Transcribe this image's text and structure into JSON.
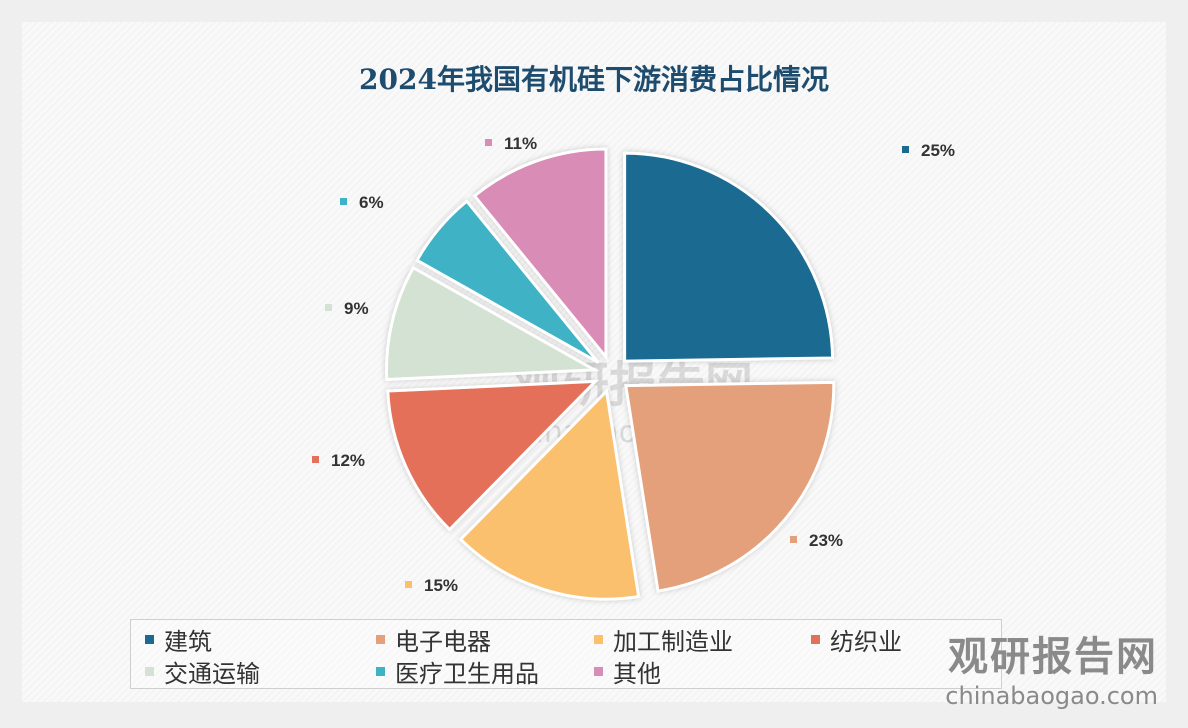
{
  "chart_data": {
    "type": "pie",
    "title": "2024年我国有机硅下游消费占比情况",
    "categories": [
      "建筑",
      "电子电器",
      "加工制造业",
      "纺织业",
      "交通运输",
      "医疗卫生用品",
      "其他"
    ],
    "values": [
      25,
      23,
      15,
      12,
      9,
      6,
      11
    ],
    "labels": [
      "25%",
      "23%",
      "15%",
      "12%",
      "9%",
      "6%",
      "11%"
    ],
    "colors": [
      "#1b6a91",
      "#e3a07a",
      "#fbc06e",
      "#e5705a",
      "#d3e2d2",
      "#3fb2c6",
      "#d98cb6"
    ],
    "legend_position": "bottom",
    "exploded": true
  },
  "watermark": {
    "name": "观研报告网",
    "url": "chinabaogao.com"
  }
}
